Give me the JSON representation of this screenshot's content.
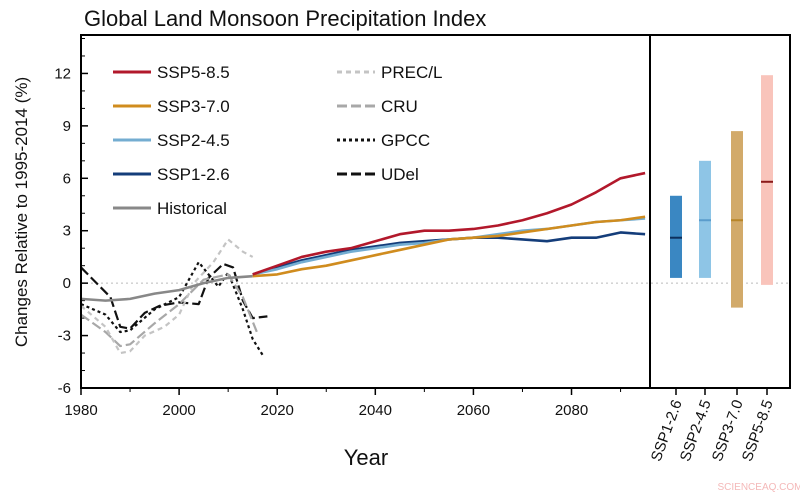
{
  "chart_data": [
    {
      "type": "line",
      "title": "Global Land Monsoon Precipitation Index",
      "xlabel": "Year",
      "ylabel": "Changes Relative to 1995-2014 (%)",
      "xlim": [
        1980,
        2096
      ],
      "ylim": [
        -6,
        14.2
      ],
      "xticks": [
        "1980",
        "2000",
        "2020",
        "2040",
        "2060",
        "2080"
      ],
      "yticks": [
        "-6",
        "-3",
        "0",
        "3",
        "6",
        "9",
        "12"
      ],
      "zero_line": true,
      "legend_placement": "top-left",
      "series": [
        {
          "name": "SSP5-8.5",
          "color": "#b2182b",
          "style": "solid",
          "x": [
            2015,
            2020,
            2025,
            2030,
            2035,
            2040,
            2045,
            2050,
            2055,
            2060,
            2065,
            2070,
            2075,
            2080,
            2085,
            2090,
            2095
          ],
          "y": [
            0.5,
            1.0,
            1.5,
            1.8,
            2.0,
            2.4,
            2.8,
            3.0,
            3.0,
            3.1,
            3.3,
            3.6,
            4.0,
            4.5,
            5.2,
            6.0,
            6.3
          ]
        },
        {
          "name": "SSP3-7.0",
          "color": "#d08c1e",
          "style": "solid",
          "x": [
            2015,
            2020,
            2025,
            2030,
            2035,
            2040,
            2045,
            2050,
            2055,
            2060,
            2065,
            2070,
            2075,
            2080,
            2085,
            2090,
            2095
          ],
          "y": [
            0.4,
            0.5,
            0.8,
            1.0,
            1.3,
            1.6,
            1.9,
            2.2,
            2.5,
            2.6,
            2.7,
            2.9,
            3.1,
            3.3,
            3.5,
            3.6,
            3.8
          ]
        },
        {
          "name": "SSP2-4.5",
          "color": "#74add1",
          "style": "solid",
          "x": [
            2015,
            2020,
            2025,
            2030,
            2035,
            2040,
            2045,
            2050,
            2055,
            2060,
            2065,
            2070,
            2075,
            2080,
            2085,
            2090,
            2095
          ],
          "y": [
            0.5,
            0.8,
            1.2,
            1.5,
            1.8,
            2.0,
            2.2,
            2.3,
            2.5,
            2.6,
            2.8,
            3.0,
            3.1,
            3.3,
            3.5,
            3.6,
            3.7
          ]
        },
        {
          "name": "SSP1-2.6",
          "color": "#143d7a",
          "style": "solid",
          "x": [
            2015,
            2020,
            2025,
            2030,
            2035,
            2040,
            2045,
            2050,
            2055,
            2060,
            2065,
            2070,
            2075,
            2080,
            2085,
            2090,
            2095
          ],
          "y": [
            0.5,
            0.9,
            1.3,
            1.6,
            1.9,
            2.1,
            2.3,
            2.4,
            2.5,
            2.6,
            2.6,
            2.5,
            2.4,
            2.6,
            2.6,
            2.9,
            2.8
          ]
        },
        {
          "name": "Historical",
          "color": "#888888",
          "style": "solid",
          "x": [
            1980,
            1985,
            1990,
            1995,
            2000,
            2005,
            2010,
            2015
          ],
          "y": [
            -0.9,
            -1.0,
            -0.9,
            -0.6,
            -0.4,
            0.0,
            0.3,
            0.4
          ]
        },
        {
          "name": "PREC/L",
          "color": "#c4c4c4",
          "style": "dashed",
          "x": [
            1980,
            1985,
            1988,
            1990,
            1993,
            1997,
            2000,
            2003,
            2007,
            2010,
            2013,
            2015
          ],
          "y": [
            -1.3,
            -2.5,
            -4.0,
            -3.9,
            -3.0,
            -2.5,
            -1.8,
            0.0,
            1.2,
            2.5,
            1.8,
            1.5
          ]
        },
        {
          "name": "CRU",
          "color": "#a8a8a8",
          "style": "longdash",
          "x": [
            1980,
            1985,
            1988,
            1990,
            1995,
            2000,
            2005,
            2010,
            2013,
            2016
          ],
          "y": [
            -1.8,
            -2.8,
            -3.6,
            -3.5,
            -2.3,
            -1.2,
            0.2,
            0.5,
            -0.8,
            -2.9
          ]
        },
        {
          "name": "GPCC",
          "color": "#111111",
          "style": "dotted",
          "x": [
            1980,
            1985,
            1988,
            1990,
            1995,
            2000,
            2004,
            2008,
            2010,
            2013,
            2015,
            2017
          ],
          "y": [
            -1.2,
            -1.8,
            -2.8,
            -2.7,
            -1.5,
            -0.8,
            1.2,
            -0.2,
            0.6,
            -1.5,
            -3.2,
            -4.1
          ]
        },
        {
          "name": "UDel",
          "color": "#111111",
          "style": "longdash",
          "x": [
            1980,
            1986,
            1988,
            1990,
            1993,
            1996,
            2000,
            2004,
            2006,
            2009,
            2011,
            2013,
            2015,
            2018
          ],
          "y": [
            0.9,
            -0.8,
            -2.5,
            -2.6,
            -1.7,
            -1.3,
            -1.1,
            -1.2,
            0.3,
            1.1,
            0.9,
            -1.0,
            -2.0,
            -1.9
          ]
        }
      ]
    },
    {
      "type": "range-bar",
      "categories": [
        "SSP1-2.6",
        "SSP2-4.5",
        "SSP3-7.0",
        "SSP5-8.5"
      ],
      "colors": [
        "#3a87c2",
        "#8ec5e6",
        "#d2aa6a",
        "#f9c4bb"
      ],
      "median_colors": [
        "#0d2f5c",
        "#5a9ccc",
        "#b8862a",
        "#8b1a1a"
      ],
      "low": [
        0.3,
        0.3,
        -1.4,
        -0.1
      ],
      "high": [
        5.0,
        7.0,
        8.7,
        11.9
      ],
      "median": [
        2.6,
        3.6,
        3.6,
        5.8
      ]
    }
  ],
  "watermark": "SCIENCEAQ.COM"
}
